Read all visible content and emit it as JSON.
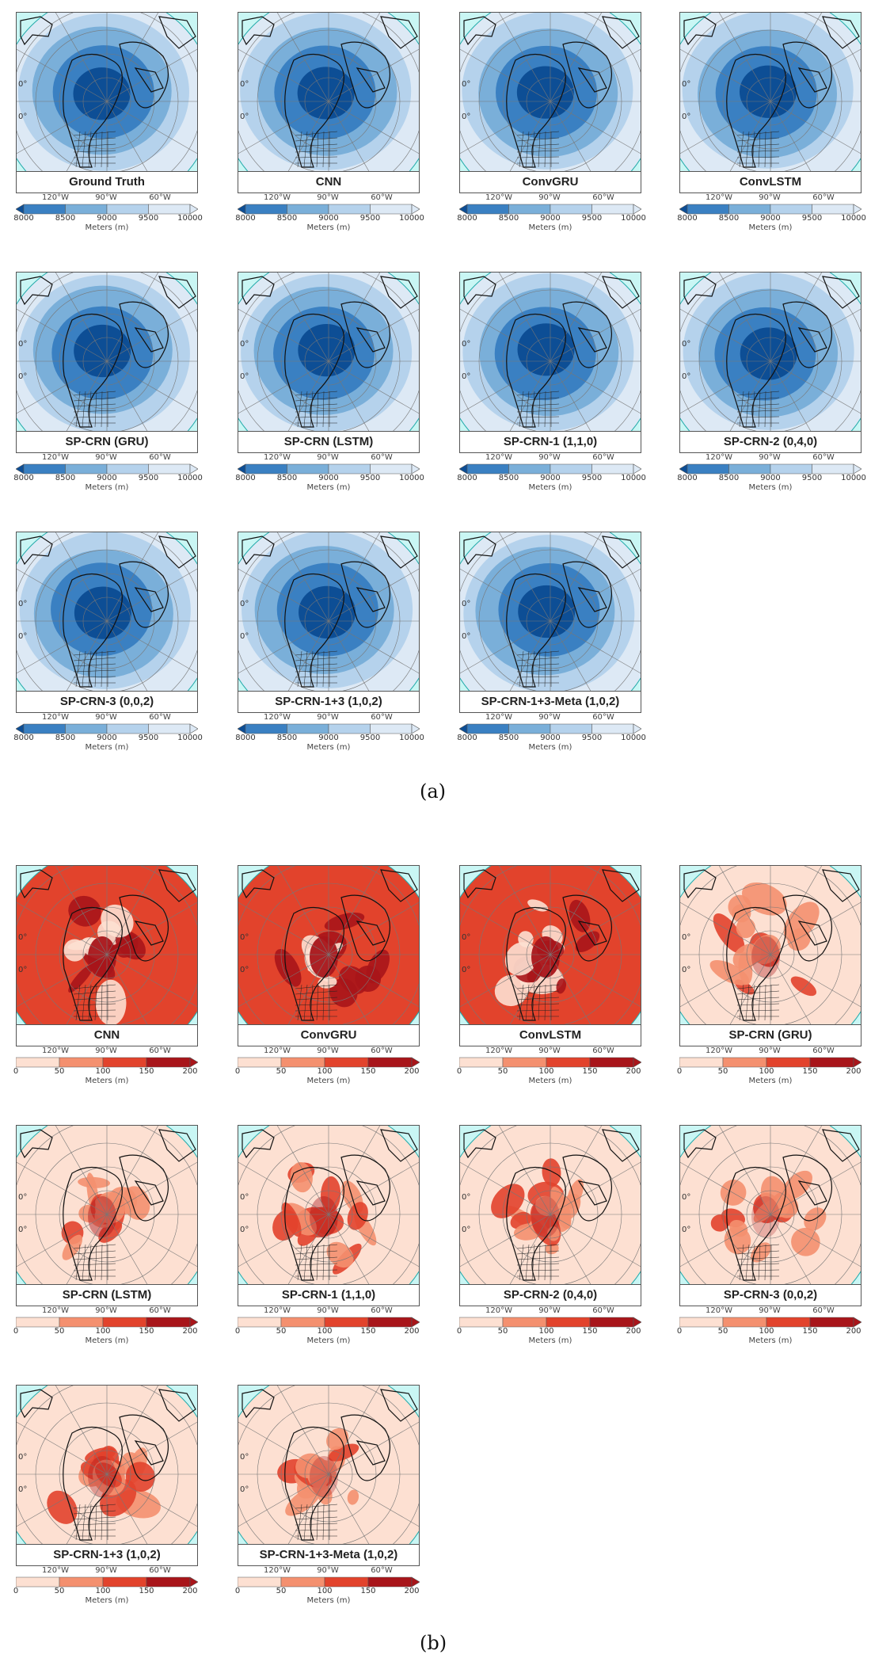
{
  "figure": {
    "section_a": {
      "label": "(a)",
      "colormap": [
        "#0d4e95",
        "#3a80c2",
        "#7aafd9",
        "#b5d2ec",
        "#dde9f5"
      ],
      "legend_ticks": [
        "8000",
        "8500",
        "9000",
        "9500",
        "10000"
      ],
      "legend_label": "Meters (m)",
      "panels": [
        {
          "title": "Ground Truth"
        },
        {
          "title": "CNN"
        },
        {
          "title": "ConvGRU"
        },
        {
          "title": "ConvLSTM"
        },
        {
          "title": "SP-CRN (GRU)"
        },
        {
          "title": "SP-CRN (LSTM)"
        },
        {
          "title": "SP-CRN-1 (1,1,0)"
        },
        {
          "title": "SP-CRN-2 (0,4,0)"
        },
        {
          "title": "SP-CRN-3 (0,0,2)"
        },
        {
          "title": "SP-CRN-1+3 (1,0,2)"
        },
        {
          "title": "SP-CRN-1+3-Meta (1,0,2)"
        }
      ]
    },
    "section_b": {
      "label": "(b)",
      "colormap": [
        "#fde0d2",
        "#f4906f",
        "#e2432c",
        "#a8151a"
      ],
      "legend_ticks": [
        "0",
        "50",
        "100",
        "150",
        "200"
      ],
      "legend_label": "Meters (m)",
      "panels": [
        {
          "title": "CNN",
          "intensity": 0.95
        },
        {
          "title": "ConvGRU",
          "intensity": 0.95
        },
        {
          "title": "ConvLSTM",
          "intensity": 0.95
        },
        {
          "title": "SP-CRN (GRU)",
          "intensity": 0.35
        },
        {
          "title": "SP-CRN (LSTM)",
          "intensity": 0.45
        },
        {
          "title": "SP-CRN-1 (1,1,0)",
          "intensity": 0.4
        },
        {
          "title": "SP-CRN-2 (0,4,0)",
          "intensity": 0.3
        },
        {
          "title": "SP-CRN-3 (0,0,2)",
          "intensity": 0.25
        },
        {
          "title": "SP-CRN-1+3 (1,0,2)",
          "intensity": 0.35
        },
        {
          "title": "SP-CRN-1+3-Meta (1,0,2)",
          "intensity": 0.3
        }
      ]
    },
    "lon_labels": [
      "120°W",
      "90°W",
      "60°W"
    ],
    "lat_labels": [
      "0°",
      "0°"
    ]
  }
}
